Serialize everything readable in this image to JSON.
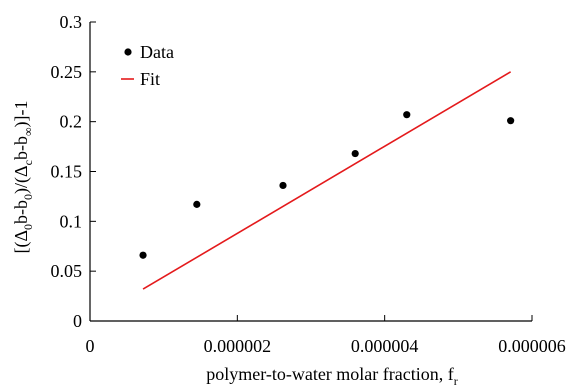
{
  "chart_data": {
    "type": "scatter",
    "title": "",
    "xlabel": "polymer-to-water molar fraction, f",
    "xlabel_subscript": "r",
    "ylabel_parts": [
      "[(Δ",
      "0",
      "b-b",
      "0",
      ")/(Δ",
      "c",
      "b-b",
      "∞",
      ")]-1"
    ],
    "xlim": [
      0,
      6e-06
    ],
    "ylim": [
      0,
      0.3
    ],
    "x_ticks": [
      0,
      2e-06,
      4e-06,
      6e-06
    ],
    "x_tick_labels": [
      "0",
      "0.000002",
      "0.000004",
      "0.000006"
    ],
    "y_ticks": [
      0,
      0.05,
      0.1,
      0.15,
      0.2,
      0.25,
      0.3
    ],
    "y_tick_labels": [
      "0",
      "0.05",
      "0.1",
      "0.15",
      "0.2",
      "0.25",
      "0.3"
    ],
    "grid": false,
    "legend_position": "top-left",
    "series": [
      {
        "name": "Data",
        "kind": "points",
        "color": "#000000",
        "x": [
          7.2e-07,
          1.45e-06,
          2.62e-06,
          3.6e-06,
          4.3e-06,
          5.71e-06
        ],
        "y": [
          0.066,
          0.117,
          0.136,
          0.168,
          0.207,
          0.201
        ]
      },
      {
        "name": "Fit",
        "kind": "line",
        "color": "#e41a1c",
        "x": [
          7.2e-07,
          5.71e-06
        ],
        "y": [
          0.032,
          0.25
        ]
      }
    ]
  }
}
